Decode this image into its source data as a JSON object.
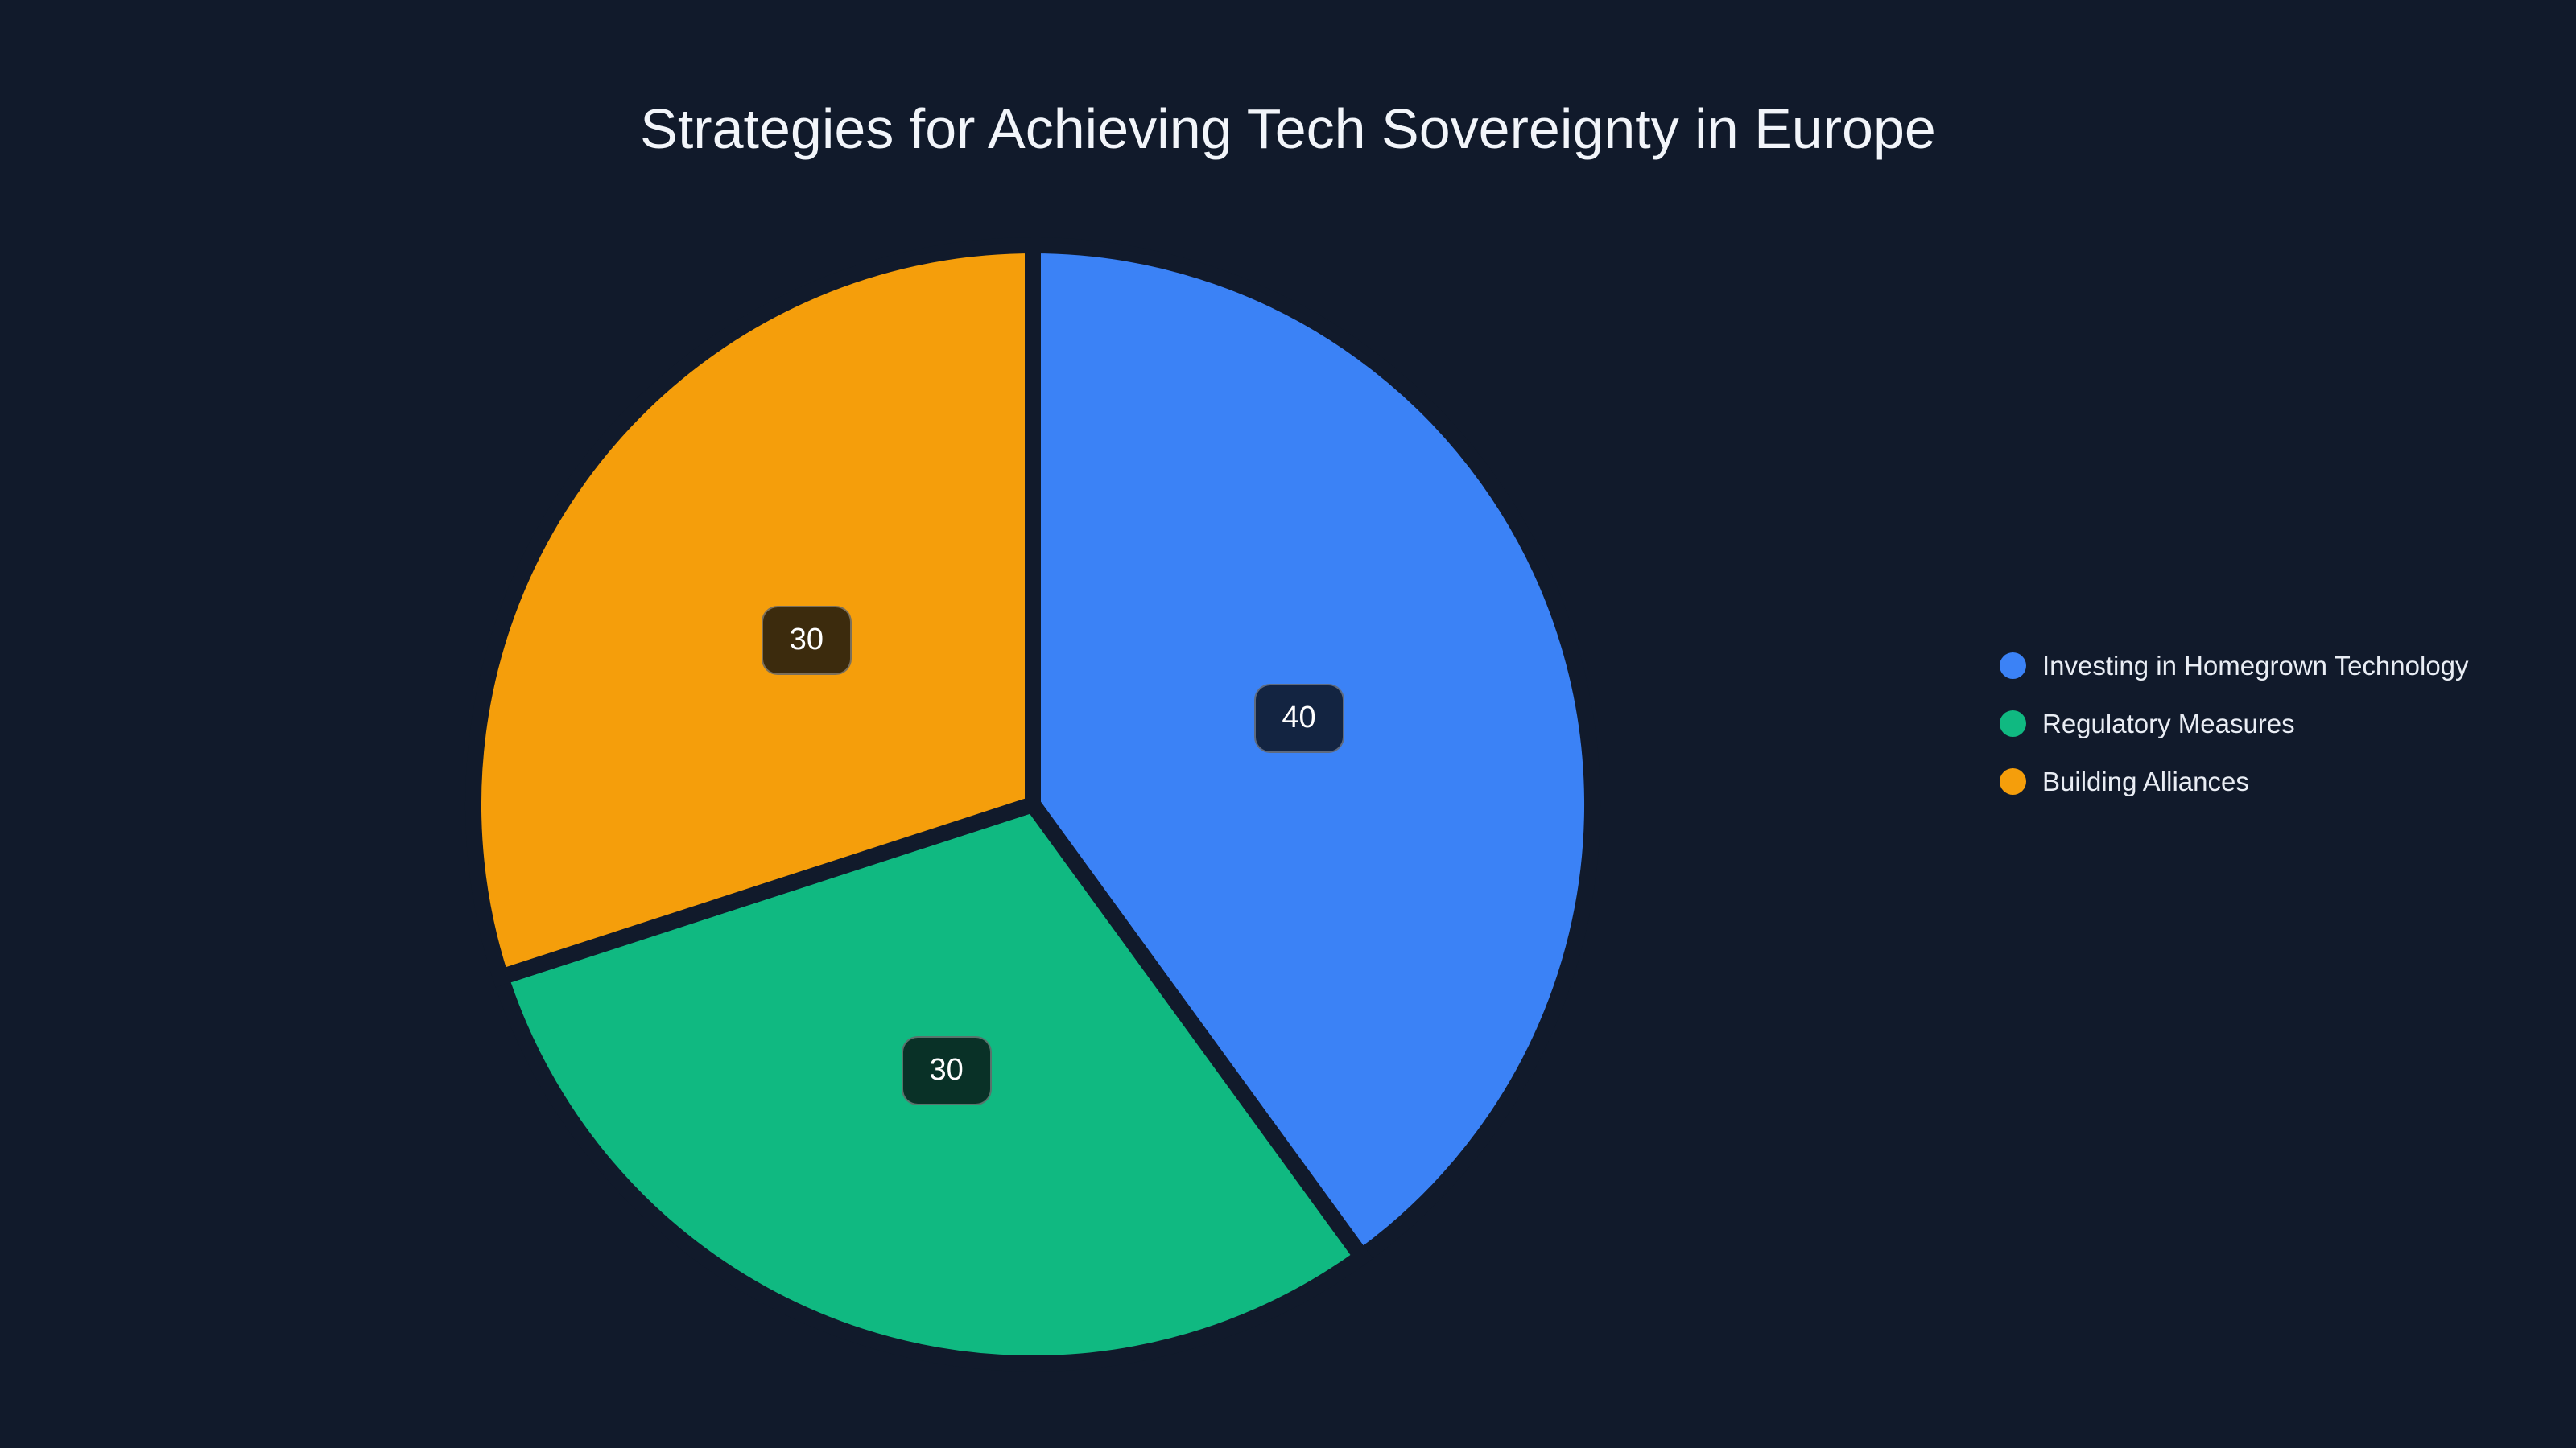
{
  "page": {
    "background_color": "#111a2b"
  },
  "chart_data": {
    "type": "pie",
    "title": "Strategies for Achieving Tech Sovereignty in Europe",
    "labels": [
      "Investing in Homegrown Technology",
      "Regulatory Measures",
      "Building Alliances"
    ],
    "values": [
      40,
      30,
      30
    ],
    "colors": [
      "#3b82f6",
      "#10b981",
      "#f59e0b"
    ],
    "start_angle_deg": 0,
    "direction": "clockwise",
    "slice_gap_color": "#111a2b",
    "value_labels_shown": true,
    "legend_position": "middle-right",
    "legend_marker_shape": "circle"
  }
}
